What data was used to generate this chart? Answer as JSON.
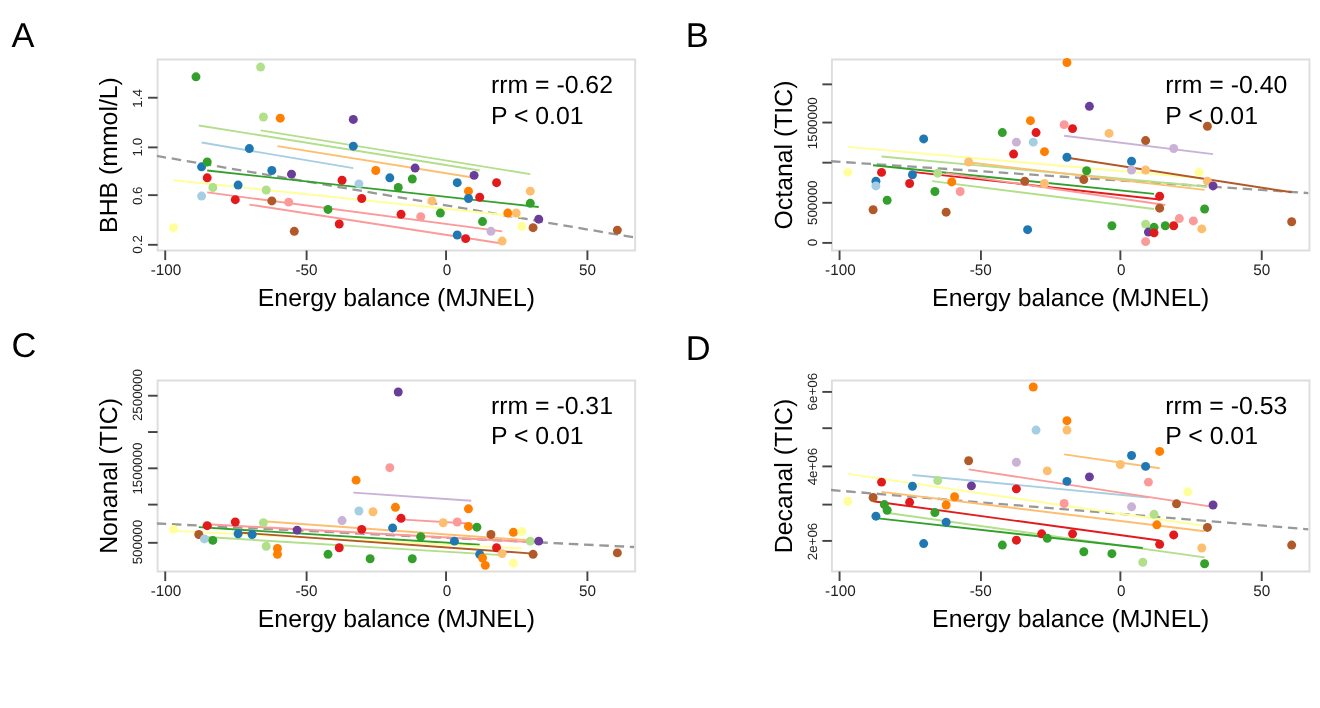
{
  "chart_data": [
    {
      "type": "scatter",
      "title": "A",
      "xlabel": "Energy balance (MJNEL)",
      "ylabel": "BHB (mmol/L)",
      "xlim": [
        -103,
        67
      ],
      "xticks": [
        -100,
        -50,
        0,
        50
      ],
      "ylim": [
        0.15,
        1.72
      ],
      "yticks": [
        0.2,
        0.6,
        {
          "value": 1.0,
          "label": "1.0"
        },
        1.4
      ],
      "annotations": [
        "rrm = -0.62",
        "P < 0.01"
      ],
      "series": [
        {
          "type": "line",
          "x": [
            -103,
            67
          ],
          "values": [
            0.92,
            0.25
          ],
          "color": "#999999",
          "line_style": "dashed"
        },
        {
          "type": "line",
          "x": [
            -88,
            12
          ],
          "values": [
            1.17,
            0.8
          ],
          "color": "#b2df8a",
          "line_style": "solid"
        },
        {
          "type": "line",
          "x": [
            -87,
            -33
          ],
          "values": [
            1.03,
            0.82
          ],
          "color": "#a6cee3",
          "line_style": "solid"
        },
        {
          "type": "line",
          "x": [
            -66,
            30
          ],
          "values": [
            1.13,
            0.77
          ],
          "color": "#b2df8a",
          "line_style": "solid"
        },
        {
          "type": "line",
          "x": [
            -60,
            10
          ],
          "values": [
            1.0,
            0.74
          ],
          "color": "#fdbf6f",
          "line_style": "solid"
        },
        {
          "type": "line",
          "x": [
            -85,
            33
          ],
          "values": [
            0.8,
            0.5
          ],
          "color": "#33a02c",
          "line_style": "solid"
        },
        {
          "type": "line",
          "x": [
            -97,
            27
          ],
          "values": [
            0.72,
            0.42
          ],
          "color": "#ffff99",
          "line_style": "solid"
        },
        {
          "type": "line",
          "x": [
            -85,
            20
          ],
          "values": [
            0.62,
            0.3
          ],
          "color": "#fb9a99",
          "line_style": "solid"
        },
        {
          "type": "line",
          "x": [
            -70,
            20
          ],
          "values": [
            0.52,
            0.2
          ],
          "color": "#fb9a99",
          "line_style": "solid"
        },
        {
          "marker": "circle",
          "x": [
            -89,
            -66,
            -65,
            -59,
            -33,
            -33,
            -70,
            -87,
            -85,
            -85,
            -83,
            -87,
            -75,
            -74,
            -64,
            -62,
            -62,
            -55,
            -56,
            -54,
            -97,
            -42,
            -38,
            -37,
            -31,
            -30,
            -25,
            -20,
            -17,
            -16,
            -12,
            -11,
            -5,
            -2,
            4,
            4,
            7,
            8,
            8,
            10,
            12,
            13,
            18,
            20,
            22,
            25,
            27,
            30,
            30,
            31,
            33,
            61,
            16,
            -9
          ],
          "values": [
            1.57,
            1.65,
            1.24,
            1.23,
            1.22,
            1.0,
            0.98,
            0.83,
            0.87,
            0.74,
            0.66,
            0.59,
            0.56,
            0.68,
            0.64,
            0.8,
            0.55,
            0.77,
            0.54,
            0.3,
            0.33,
            0.48,
            0.36,
            0.72,
            0.69,
            0.57,
            0.8,
            0.74,
            0.66,
            0.44,
            0.73,
            0.82,
            0.55,
            0.45,
            0.7,
            0.27,
            0.24,
            0.63,
            0.57,
            0.76,
            0.58,
            0.38,
            0.7,
            0.22,
            0.45,
            0.45,
            0.34,
            0.63,
            0.53,
            0.33,
            0.4,
            0.31,
            0.3,
            0.42
          ],
          "colors": [
            "#33a02c",
            "#b2df8a",
            "#b2df8a",
            "#ff7f00",
            "#6a3d9a",
            "#1f78b4",
            "#1f78b4",
            "#1f78b4",
            "#33a02c",
            "#e31a1c",
            "#b2df8a",
            "#a6cee3",
            "#e31a1c",
            "#1f78b4",
            "#b2df8a",
            "#1f78b4",
            "#b15928",
            "#6a3d9a",
            "#fb9a99",
            "#b15928",
            "#ffff99",
            "#33a02c",
            "#e31a1c",
            "#e31a1c",
            "#a6cee3",
            "#e31a1c",
            "#ff7f00",
            "#1f78b4",
            "#33a02c",
            "#e31a1c",
            "#33a02c",
            "#6a3d9a",
            "#fdbf6f",
            "#33a02c",
            "#1f78b4",
            "#1f78b4",
            "#e31a1c",
            "#ff7f00",
            "#1f78b4",
            "#6a3d9a",
            "#e31a1c",
            "#33a02c",
            "#e31a1c",
            "#fdbf6f",
            "#ff7f00",
            "#fdbf6f",
            "#ffff99",
            "#fdbf6f",
            "#33a02c",
            "#b15928",
            "#6a3d9a",
            "#b15928",
            "#cab2d6",
            "#fb9a99"
          ]
        }
      ]
    },
    {
      "type": "scatter",
      "title": "B",
      "xlabel": "Energy balance (MJNEL)",
      "ylabel": "Octanal (TIC)",
      "xlim": [
        -103,
        67
      ],
      "xticks": [
        -100,
        -50,
        0,
        50
      ],
      "ylim": [
        -100000,
        2300000
      ],
      "yticks": [
        0,
        500000,
        {
          "value": 1000000,
          "label": null
        },
        1500000,
        {
          "value": 2000000,
          "label": null
        }
      ],
      "annotations": [
        "rrm = -0.40",
        "P < 0.01"
      ],
      "series": [
        {
          "type": "line",
          "x": [
            -103,
            67
          ],
          "values": [
            1010000,
            610000
          ],
          "color": "#999999",
          "line_style": "dashed"
        },
        {
          "type": "line",
          "x": [
            -20,
            33
          ],
          "values": [
            1330000,
            1100000
          ],
          "color": "#cab2d6",
          "line_style": "solid"
        },
        {
          "type": "line",
          "x": [
            -97,
            28
          ],
          "values": [
            1190000,
            800000
          ],
          "color": "#ffff99",
          "line_style": "solid"
        },
        {
          "type": "line",
          "x": [
            -85,
            31
          ],
          "values": [
            1070000,
            690000
          ],
          "color": "#b2df8a",
          "line_style": "solid"
        },
        {
          "type": "line",
          "x": [
            -88,
            12
          ],
          "values": [
            960000,
            600000
          ],
          "color": "#33a02c",
          "line_style": "solid"
        },
        {
          "type": "line",
          "x": [
            -75,
            14
          ],
          "values": [
            880000,
            530000
          ],
          "color": "#e31a1c",
          "line_style": "solid"
        },
        {
          "type": "line",
          "x": [
            -67,
            12
          ],
          "values": [
            760000,
            410000
          ],
          "color": "#b2df8a",
          "line_style": "solid"
        },
        {
          "type": "line",
          "x": [
            -55,
            30
          ],
          "values": [
            1000000,
            650000
          ],
          "color": "#fdbf6f",
          "line_style": "solid"
        },
        {
          "type": "line",
          "x": [
            -20,
            61
          ],
          "values": [
            1060000,
            620000
          ],
          "color": "#b15928",
          "line_style": "solid"
        },
        {
          "type": "line",
          "x": [
            -62,
            16
          ],
          "values": [
            860000,
            460000
          ],
          "color": "#fb9a99",
          "line_style": "solid"
        },
        {
          "marker": "circle",
          "x": [
            -19,
            -11,
            31,
            -32,
            -20,
            -17,
            -30,
            -42,
            -4,
            -70,
            -37,
            -31,
            9,
            19,
            -38,
            -27,
            -19,
            4,
            -97,
            -87,
            -87,
            -85,
            -75,
            -74,
            -83,
            -88,
            -65,
            -66,
            -60,
            -57,
            -62,
            -54,
            -34,
            -33,
            -27,
            -13,
            -12,
            -3,
            4,
            9,
            9,
            10,
            12,
            12,
            14,
            16,
            19,
            21,
            26,
            29,
            28,
            31,
            33,
            30,
            61,
            9,
            14
          ],
          "values": [
            2250000,
            1700000,
            1450000,
            1520000,
            1470000,
            1420000,
            1370000,
            1370000,
            1360000,
            1290000,
            1250000,
            1250000,
            1270000,
            1170000,
            1100000,
            1130000,
            1060000,
            1010000,
            870000,
            760000,
            700000,
            870000,
            730000,
            840000,
            520000,
            400000,
            860000,
            630000,
            750000,
            630000,
            370000,
            1000000,
            760000,
            150000,
            730000,
            780000,
            890000,
            200000,
            900000,
            220000,
            0,
            120000,
            180000,
            110000,
            420000,
            200000,
            200000,
            290000,
            260000,
            160000,
            870000,
            760000,
            700000,
            410000,
            250000,
            900000,
            570000
          ],
          "colors": [
            "#ff7f00",
            "#6a3d9a",
            "#b15928",
            "#ff7f00",
            "#fb9a99",
            "#e31a1c",
            "#e31a1c",
            "#33a02c",
            "#fdbf6f",
            "#1f78b4",
            "#cab2d6",
            "#a6cee3",
            "#b15928",
            "#cab2d6",
            "#e31a1c",
            "#ff7f00",
            "#1f78b4",
            "#1f78b4",
            "#ffff99",
            "#1f78b4",
            "#a6cee3",
            "#e31a1c",
            "#e31a1c",
            "#1f78b4",
            "#33a02c",
            "#b15928",
            "#b2df8a",
            "#33a02c",
            "#ff7f00",
            "#fb9a99",
            "#b15928",
            "#fdbf6f",
            "#b15928",
            "#1f78b4",
            "#fdbf6f",
            "#b15928",
            "#33a02c",
            "#33a02c",
            "#cab2d6",
            "#b2df8a",
            "#fb9a99",
            "#6a3d9a",
            "#33a02c",
            "#e31a1c",
            "#b15928",
            "#33a02c",
            "#e31a1c",
            "#fb9a99",
            "#fb9a99",
            "#fdbf6f",
            "#ffff99",
            "#fdbf6f",
            "#6a3d9a",
            "#33a02c",
            "#b15928",
            "#fdbf6f",
            "#e31a1c"
          ]
        }
      ]
    },
    {
      "type": "scatter",
      "title": "C",
      "xlabel": "Energy balance (MJNEL)",
      "ylabel": "Nonanal (TIC)",
      "xlim": [
        -103,
        67
      ],
      "xticks": [
        -100,
        -50,
        0,
        50
      ],
      "ylim": [
        100000,
        2700000
      ],
      "yticks": [
        500000,
        {
          "value": 1000000,
          "label": null
        },
        1500000,
        {
          "value": 2000000,
          "label": null
        },
        2500000
      ],
      "annotations": [
        "rrm = -0.31",
        "P < 0.01"
      ],
      "series": [
        {
          "type": "line",
          "x": [
            -103,
            67
          ],
          "values": [
            740000,
            420000
          ],
          "color": "#999999",
          "line_style": "dashed"
        },
        {
          "type": "line",
          "x": [
            -33,
            9
          ],
          "values": [
            1160000,
            1050000
          ],
          "color": "#cab2d6",
          "line_style": "solid"
        },
        {
          "type": "line",
          "x": [
            -65,
            30
          ],
          "values": [
            770000,
            510000
          ],
          "color": "#fdbf6f",
          "line_style": "solid"
        },
        {
          "type": "line",
          "x": [
            -85,
            33
          ],
          "values": [
            730000,
            480000
          ],
          "color": "#fb9a99",
          "line_style": "solid"
        },
        {
          "type": "line",
          "x": [
            -88,
            12
          ],
          "values": [
            690000,
            450000
          ],
          "color": "#33a02c",
          "line_style": "solid"
        },
        {
          "type": "line",
          "x": [
            -97,
            27
          ],
          "values": [
            640000,
            400000
          ],
          "color": "#ffff99",
          "line_style": "solid"
        },
        {
          "type": "line",
          "x": [
            -75,
            31
          ],
          "values": [
            620000,
            330000
          ],
          "color": "#b15928",
          "line_style": "solid"
        },
        {
          "type": "line",
          "x": [
            -87,
            20
          ],
          "values": [
            560000,
            310000
          ],
          "color": "#b2df8a",
          "line_style": "solid"
        },
        {
          "type": "line",
          "x": [
            -18,
            8
          ],
          "values": [
            800000,
            740000
          ],
          "color": "#fb9a99",
          "line_style": "solid"
        },
        {
          "marker": "circle",
          "x": [
            -17,
            -20,
            -32,
            -18,
            -31,
            -26,
            -16,
            8,
            -37,
            -75,
            -97,
            -88,
            -86,
            -85,
            -83,
            -74,
            -69,
            -65,
            -64,
            -60,
            -60,
            -53,
            -42,
            -38,
            -30,
            -27,
            -19,
            -12,
            -9,
            -1,
            3,
            4,
            8,
            11,
            12,
            13,
            14,
            16,
            18,
            20,
            24,
            24,
            27,
            30,
            31,
            33,
            61
          ],
          "values": [
            2530000,
            1500000,
            1330000,
            960000,
            910000,
            900000,
            810000,
            940000,
            780000,
            760000,
            660000,
            590000,
            530000,
            710000,
            510000,
            600000,
            590000,
            750000,
            430000,
            400000,
            320000,
            650000,
            320000,
            410000,
            660000,
            260000,
            680000,
            260000,
            560000,
            750000,
            500000,
            760000,
            700000,
            690000,
            320000,
            270000,
            170000,
            590000,
            410000,
            330000,
            620000,
            200000,
            630000,
            500000,
            320000,
            500000,
            340000
          ],
          "colors": [
            "#6a3d9a",
            "#fb9a99",
            "#ff7f00",
            "#ff7f00",
            "#a6cee3",
            "#fdbf6f",
            "#e31a1c",
            "#ff7f00",
            "#cab2d6",
            "#e31a1c",
            "#ffff99",
            "#b15928",
            "#a6cee3",
            "#e31a1c",
            "#33a02c",
            "#1f78b4",
            "#1f78b4",
            "#b2df8a",
            "#b2df8a",
            "#ff7f00",
            "#ff7f00",
            "#6a3d9a",
            "#33a02c",
            "#e31a1c",
            "#e31a1c",
            "#33a02c",
            "#1f78b4",
            "#33a02c",
            "#33a02c",
            "#fdbf6f",
            "#1f78b4",
            "#fb9a99",
            "#ff7f00",
            "#33a02c",
            "#1f78b4",
            "#ff7f00",
            "#ff7f00",
            "#b15928",
            "#e31a1c",
            "#fdbf6f",
            "#ff7f00",
            "#ffff99",
            "#ffff99",
            "#b2df8a",
            "#b15928",
            "#6a3d9a",
            "#b15928"
          ]
        }
      ]
    },
    {
      "type": "scatter",
      "title": "D",
      "xlabel": "Energy balance (MJNEL)",
      "ylabel": "Decanal (TIC)",
      "xlim": [
        -103,
        67
      ],
      "xticks": [
        -100,
        -50,
        0,
        50
      ],
      "ylim": [
        1200000,
        6300000
      ],
      "yticks": [
        {
          "value": 2000000,
          "label": "2e+06"
        },
        {
          "value": 3000000,
          "label": null
        },
        {
          "value": 4000000,
          "label": "4e+06"
        },
        {
          "value": 5000000,
          "label": null
        },
        {
          "value": 6000000,
          "label": "6e+06"
        }
      ],
      "annotations": [
        "rrm = -0.53",
        "P < 0.01"
      ],
      "series": [
        {
          "type": "line",
          "x": [
            -103,
            67
          ],
          "values": [
            3350000,
            2300000
          ],
          "color": "#999999",
          "line_style": "dashed"
        },
        {
          "type": "line",
          "x": [
            -20,
            14
          ],
          "values": [
            4300000,
            3930000
          ],
          "color": "#fdbf6f",
          "line_style": "solid"
        },
        {
          "type": "line",
          "x": [
            -97,
            29
          ],
          "values": [
            3780000,
            2400000
          ],
          "color": "#ffff99",
          "line_style": "solid"
        },
        {
          "type": "line",
          "x": [
            -74,
            10
          ],
          "values": [
            3750000,
            3150000
          ],
          "color": "#a6cee3",
          "line_style": "solid"
        },
        {
          "type": "line",
          "x": [
            -54,
            33
          ],
          "values": [
            3900000,
            2900000
          ],
          "color": "#fb9a99",
          "line_style": "solid"
        },
        {
          "type": "line",
          "x": [
            -85,
            30
          ],
          "values": [
            3300000,
            2250000
          ],
          "color": "#fdbf6f",
          "line_style": "solid"
        },
        {
          "type": "line",
          "x": [
            -88,
            14
          ],
          "values": [
            3050000,
            2000000
          ],
          "color": "#e31a1c",
          "line_style": "solid"
        },
        {
          "type": "line",
          "x": [
            -84,
            30
          ],
          "values": [
            2750000,
            1550000
          ],
          "color": "#b2df8a",
          "line_style": "solid"
        },
        {
          "type": "line",
          "x": [
            -87,
            8
          ],
          "values": [
            2600000,
            1800000
          ],
          "color": "#33a02c",
          "line_style": "solid"
        },
        {
          "marker": "circle",
          "x": [
            -31,
            -19,
            -30,
            -19,
            14,
            4,
            0,
            9,
            -54,
            -37,
            -26,
            -11,
            -19,
            10,
            -97,
            -85,
            -88,
            -87,
            -84,
            -83,
            -74,
            -75,
            -70,
            -65,
            -66,
            -62,
            -62,
            -59,
            -53,
            -42,
            -37,
            -37,
            -28,
            -26,
            -20,
            -17,
            -13,
            -3,
            4,
            8,
            12,
            13,
            14,
            19,
            20,
            24,
            29,
            30,
            31,
            33,
            61
          ],
          "values": [
            6100000,
            5200000,
            4950000,
            4950000,
            4380000,
            4270000,
            4030000,
            3980000,
            4130000,
            4090000,
            3860000,
            3700000,
            3580000,
            3560000,
            3050000,
            3560000,
            3150000,
            2650000,
            2960000,
            2810000,
            3450000,
            3020000,
            1920000,
            3600000,
            2750000,
            2950000,
            2490000,
            3170000,
            3460000,
            1880000,
            2010000,
            3380000,
            2180000,
            2060000,
            2990000,
            2180000,
            1700000,
            1650000,
            2900000,
            1420000,
            2700000,
            2420000,
            1900000,
            2150000,
            2980000,
            3300000,
            1800000,
            1380000,
            2350000,
            2950000,
            1880000
          ],
          "colors": [
            "#ff7f00",
            "#ff7f00",
            "#a6cee3",
            "#fdbf6f",
            "#ff7f00",
            "#1f78b4",
            "#fdbf6f",
            "#1f78b4",
            "#b15928",
            "#cab2d6",
            "#fdbf6f",
            "#6a3d9a",
            "#1f78b4",
            "#fb9a99",
            "#ffff99",
            "#e31a1c",
            "#b15928",
            "#1f78b4",
            "#33a02c",
            "#33a02c",
            "#1f78b4",
            "#e31a1c",
            "#1f78b4",
            "#b2df8a",
            "#33a02c",
            "#ff7f00",
            "#1f78b4",
            "#ff7f00",
            "#6a3d9a",
            "#33a02c",
            "#e31a1c",
            "#e31a1c",
            "#e31a1c",
            "#33a02c",
            "#fb9a99",
            "#e31a1c",
            "#33a02c",
            "#33a02c",
            "#cab2d6",
            "#b2df8a",
            "#b2df8a",
            "#ff7f00",
            "#e31a1c",
            "#e31a1c",
            "#b15928",
            "#ffff99",
            "#fdbf6f",
            "#33a02c",
            "#b15928",
            "#6a3d9a",
            "#b15928"
          ]
        }
      ]
    }
  ]
}
